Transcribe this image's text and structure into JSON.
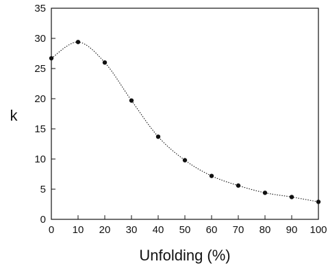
{
  "chart_data": {
    "type": "line",
    "title": "",
    "xlabel": "Unfolding (%)",
    "ylabel": "k",
    "xlim": [
      0,
      100
    ],
    "ylim": [
      0,
      35
    ],
    "x_ticks": [
      "0",
      "10",
      "20",
      "30",
      "40",
      "50",
      "60",
      "70",
      "80",
      "90",
      "100"
    ],
    "y_ticks": [
      "0",
      "5",
      "10",
      "15",
      "20",
      "25",
      "30",
      "35"
    ],
    "grid": false,
    "legend": "none",
    "series": [
      {
        "x": [
          0,
          10,
          20,
          30,
          40,
          50,
          60,
          70,
          80,
          90,
          100
        ],
        "y": [
          26.7,
          29.4,
          26.0,
          19.7,
          13.7,
          9.8,
          7.2,
          5.6,
          4.4,
          3.7,
          2.9
        ],
        "marker": "filled-circle",
        "line_style": "dotted",
        "color": "#111111"
      }
    ]
  }
}
